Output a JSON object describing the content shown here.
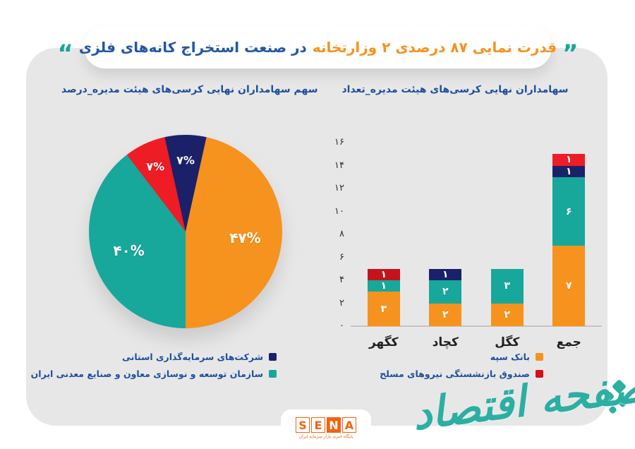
{
  "title": {
    "quote_open_glyph": "”",
    "part_orange": "قدرت نمایی ۸۷ درصدی ۲ وزارتخانه",
    "part_blue": "در صنعت استخراج کانه‌های فلزی",
    "quote_close_glyph": "“"
  },
  "colors": {
    "orange": "#F6921E",
    "teal": "#18A79B",
    "navy": "#1A2169",
    "red": "#EE1C25",
    "dark_red": "#C3141C",
    "title_orange": "#F6921E",
    "title_blue": "#2157A5",
    "subtitle_blue": "#1C4F9D",
    "quote_teal": "#16A79A",
    "card_background": "#E8E7E7",
    "watermark_teal": "#2BAFA3",
    "sena_orange": "#F6610F"
  },
  "legend_left": [
    {
      "label": "شرکت‌های سرمایه‌گذاری استانی",
      "color": "#1A2169"
    },
    {
      "label": "سازمان توسعه و نوسازی معاون و صنایع معدنی ایران",
      "color": "#18A79B"
    }
  ],
  "legend_right": [
    {
      "label": "بانک سپه",
      "color": "#F6921E"
    },
    {
      "label": "صندوق بازنشستگی نیروهای مسلح",
      "color": "#D31118"
    }
  ],
  "footer": {
    "sena_letters": "SENA",
    "sena_tagline": "پایگاه خبری بازار سرمایه ایران",
    "watermark": "صفحه اقتصاد"
  },
  "chart_data": [
    {
      "type": "pie",
      "title": "سهم سهامداران نهایی کرسی‌های هیئت مدیره_درصد",
      "unit": "درصد",
      "legend_position": "bottom-left",
      "slices": [
        {
          "label": "شرکت‌های سرمایه‌گذاری استانی",
          "value": 7,
          "display": "۷%",
          "color": "#1A2169"
        },
        {
          "label": "بانک سپه",
          "value": 47,
          "display": "۴۷%",
          "color": "#F6921E"
        },
        {
          "label": "سازمان توسعه و نوسازی معاون و صنایع معدنی ایران",
          "value": 40,
          "display": "۴۰%",
          "color": "#18A79B"
        },
        {
          "label": "صندوق بازنشستگی نیروهای مسلح",
          "value": 7,
          "display": "۷%",
          "color": "#EE1C25"
        }
      ]
    },
    {
      "type": "bar",
      "stacked": true,
      "title": "سهامداران نهایی کرسی‌های هیئت مدیره_تعداد",
      "unit": "تعداد",
      "categories": [
        "کگهر",
        "کچاد",
        "کگل",
        "جمع"
      ],
      "y_ticks": [
        "۰",
        "۲",
        "۴",
        "۶",
        "۸",
        "۱۰",
        "۱۲",
        "۱۴",
        "۱۶"
      ],
      "ylim": [
        0,
        16
      ],
      "grid": false,
      "legend_position": "bottom-right",
      "bars": [
        {
          "category": "کگهر",
          "segments": [
            {
              "series": "بانک سپه",
              "value": 3,
              "display": "۳",
              "color": "#F6921E"
            },
            {
              "series": "سازمان توسعه و نوسازی معاون و صنایع معدنی ایران",
              "value": 1,
              "display": "۱",
              "color": "#18A79B"
            },
            {
              "series": "صندوق بازنشستگی نیروهای مسلح",
              "value": 1,
              "display": "۱",
              "color": "#C3141C"
            }
          ]
        },
        {
          "category": "کچاد",
          "segments": [
            {
              "series": "بانک سپه",
              "value": 2,
              "display": "۲",
              "color": "#F6921E"
            },
            {
              "series": "سازمان توسعه و نوسازی معاون و صنایع معدنی ایران",
              "value": 2,
              "display": "۲",
              "color": "#18A79B"
            },
            {
              "series": "شرکت‌های سرمایه‌گذاری استانی",
              "value": 1,
              "display": "۱",
              "color": "#1A2169"
            }
          ]
        },
        {
          "category": "کگل",
          "segments": [
            {
              "series": "بانک سپه",
              "value": 2,
              "display": "۲",
              "color": "#F6921E"
            },
            {
              "series": "سازمان توسعه و نوسازی معاون و صنایع معدنی ایران",
              "value": 3,
              "display": "۳",
              "color": "#18A79B"
            }
          ]
        },
        {
          "category": "جمع",
          "segments": [
            {
              "series": "بانک سپه",
              "value": 7,
              "display": "۷",
              "color": "#F6921E"
            },
            {
              "series": "سازمان توسعه و نوسازی معاون و صنایع معدنی ایران",
              "value": 6,
              "display": "۶",
              "color": "#18A79B"
            },
            {
              "series": "شرکت‌های سرمایه‌گذاری استانی",
              "value": 1,
              "display": "۱",
              "color": "#1A2169"
            },
            {
              "series": "صندوق بازنشستگی نیروهای مسلح",
              "value": 1,
              "display": "۱",
              "color": "#EE1C25"
            }
          ]
        }
      ]
    }
  ]
}
